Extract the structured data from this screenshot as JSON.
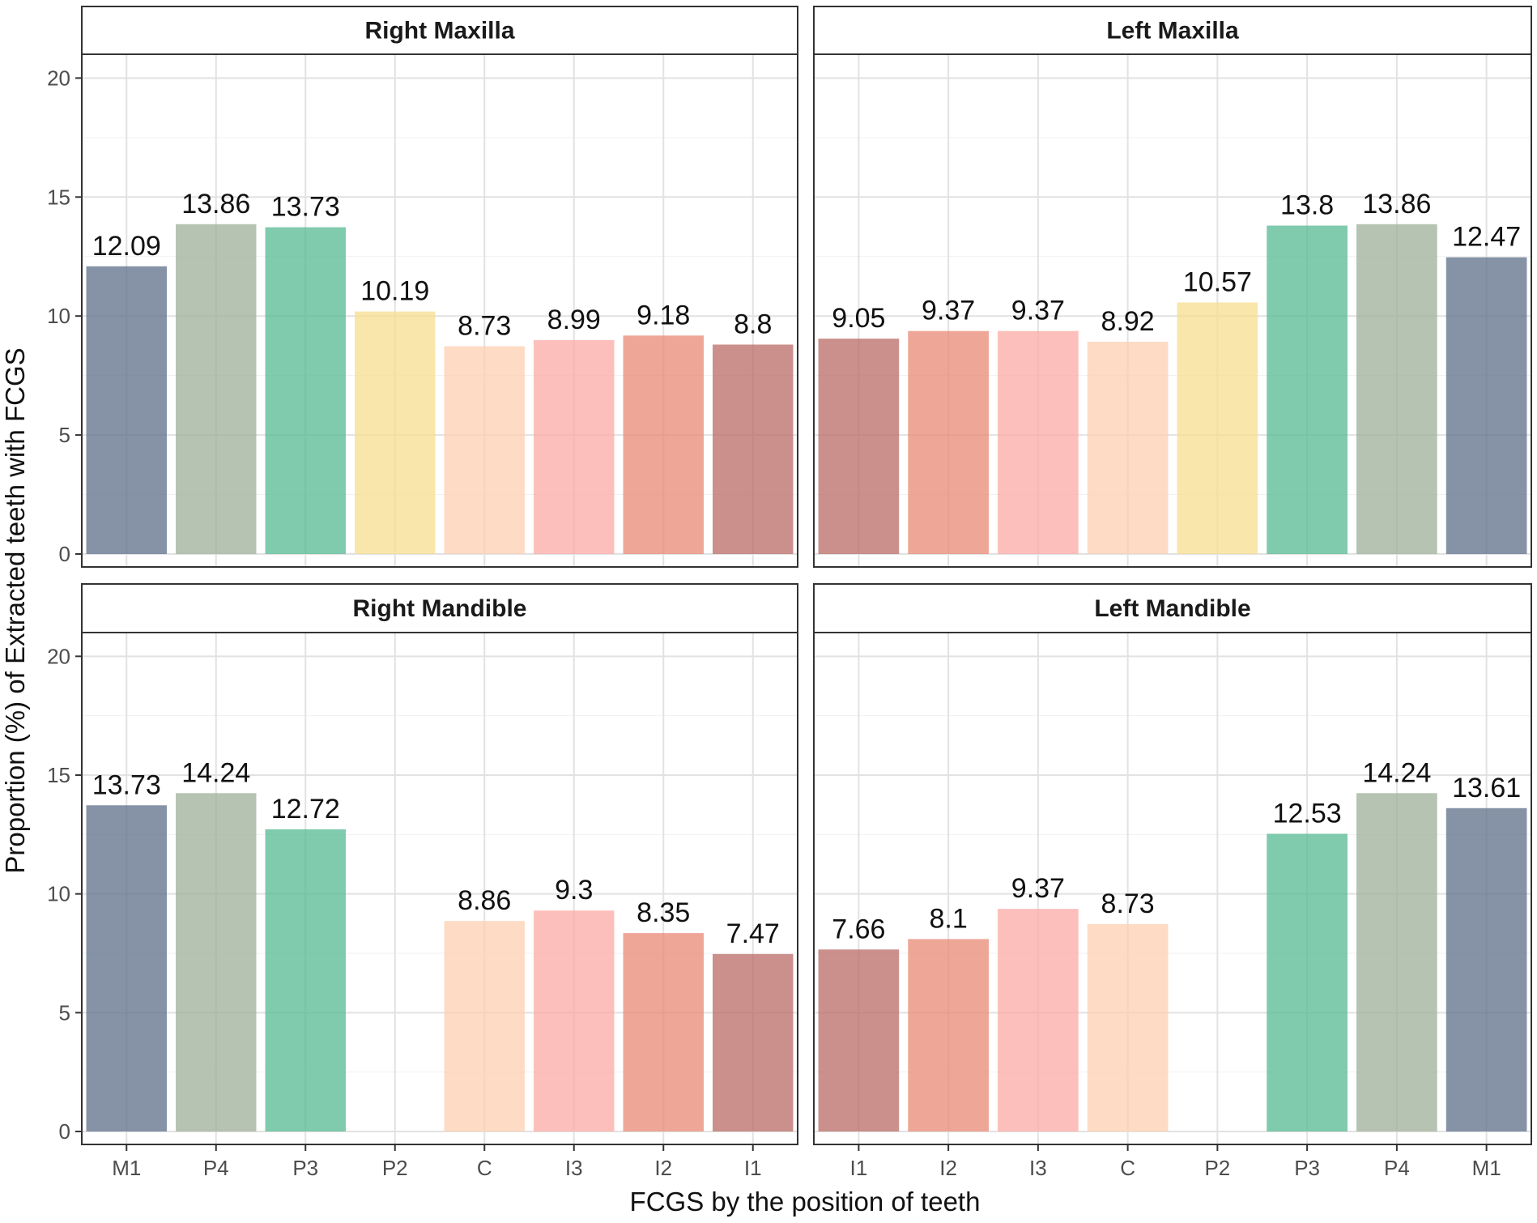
{
  "chart_data": {
    "type": "bar",
    "xlabel": "FCGS by the position of teeth",
    "ylabel": "Proportion (%) of Extracted teeth with FCGS",
    "ylim": [
      0,
      21
    ],
    "yticks": [
      0,
      5,
      10,
      15,
      20
    ],
    "grid": true,
    "colors": {
      "M1": "#5e6f8a",
      "P4": "#9daf98",
      "P3": "#56b893",
      "P2": "#f7dd8e",
      "C": "#fdcfb2",
      "I3": "#fcaaa4",
      "I2": "#e88a74",
      "I1": "#b96b66"
    },
    "panels": [
      {
        "title": "Right Maxilla",
        "categories": [
          "M1",
          "P4",
          "P3",
          "P2",
          "C",
          "I3",
          "I2",
          "I1"
        ],
        "values": [
          12.09,
          13.86,
          13.73,
          10.19,
          8.73,
          8.99,
          9.18,
          8.8
        ],
        "labels": [
          "12.09",
          "13.86",
          "13.73",
          "10.19",
          "8.73",
          "8.99",
          "9.18",
          "8.8"
        ]
      },
      {
        "title": "Left Maxilla",
        "categories": [
          "I1",
          "I2",
          "I3",
          "C",
          "P2",
          "P3",
          "P4",
          "M1"
        ],
        "values": [
          9.05,
          9.37,
          9.37,
          8.92,
          10.57,
          13.8,
          13.86,
          12.47
        ],
        "labels": [
          "9.05",
          "9.37",
          "9.37",
          "8.92",
          "10.57",
          "13.8",
          "13.86",
          "12.47"
        ]
      },
      {
        "title": "Right Mandible",
        "categories": [
          "M1",
          "P4",
          "P3",
          "P2",
          "C",
          "I3",
          "I2",
          "I1"
        ],
        "values": [
          13.73,
          14.24,
          12.72,
          null,
          8.86,
          9.3,
          8.35,
          7.47
        ],
        "labels": [
          "13.73",
          "14.24",
          "12.72",
          null,
          "8.86",
          "9.3",
          "8.35",
          "7.47"
        ]
      },
      {
        "title": "Left Mandible",
        "categories": [
          "I1",
          "I2",
          "I3",
          "C",
          "P2",
          "P3",
          "P4",
          "M1"
        ],
        "values": [
          7.66,
          8.1,
          9.37,
          8.73,
          null,
          12.53,
          14.24,
          13.61
        ],
        "labels": [
          "7.66",
          "8.1",
          "9.37",
          "8.73",
          null,
          "12.53",
          "14.24",
          "13.61"
        ]
      }
    ]
  }
}
